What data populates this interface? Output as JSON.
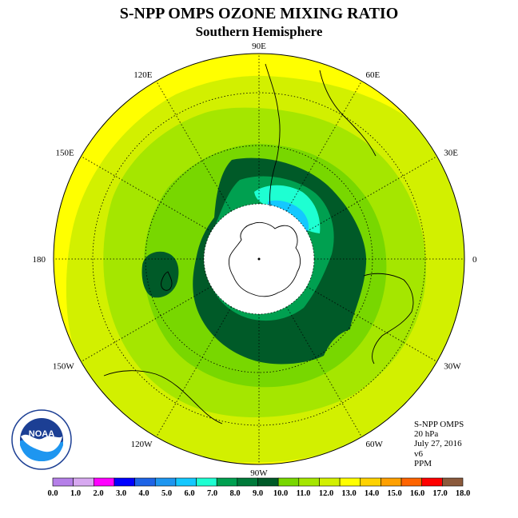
{
  "title": "S-NPP OMPS OZONE MIXING RATIO",
  "subtitle": "Southern Hemisphere",
  "longitude_labels": [
    "0",
    "30E",
    "60E",
    "90E",
    "120E",
    "150E",
    "180",
    "150W",
    "120W",
    "90W",
    "60W",
    "30W"
  ],
  "info": {
    "instrument": "S-NPP OMPS",
    "pressure_level": "20 hPa",
    "date": "July 27, 2016",
    "version": "v6",
    "units": "PPM"
  },
  "logo": {
    "text": "NOAA",
    "icon": "noaa-logo"
  },
  "colorbar": {
    "labels": [
      "0.0",
      "1.0",
      "2.0",
      "3.0",
      "4.0",
      "5.0",
      "6.0",
      "7.0",
      "8.0",
      "9.0",
      "10.0",
      "11.0",
      "12.0",
      "13.0",
      "14.0",
      "15.0",
      "16.0",
      "17.0",
      "18.0"
    ],
    "colors": [
      "#b57fe8",
      "#d7a8f0",
      "#ff00ff",
      "#0000ff",
      "#1e64e6",
      "#1e96f0",
      "#14c8ff",
      "#1effd2",
      "#00a050",
      "#007a3a",
      "#005a28",
      "#78d700",
      "#a5e600",
      "#d2f000",
      "#ffff00",
      "#ffd200",
      "#ffa000",
      "#ff6400",
      "#ff0000",
      "#8b5a3c"
    ]
  },
  "colors": {
    "outer_yellow": "#ffff00",
    "light_yellow_green": "#d2f000",
    "yellow_green": "#a5e600",
    "green": "#78d700",
    "green_dark": "#00a050",
    "darkest_green": "#005a28",
    "cyan": "#1effd2",
    "sky_blue": "#14c8ff"
  }
}
